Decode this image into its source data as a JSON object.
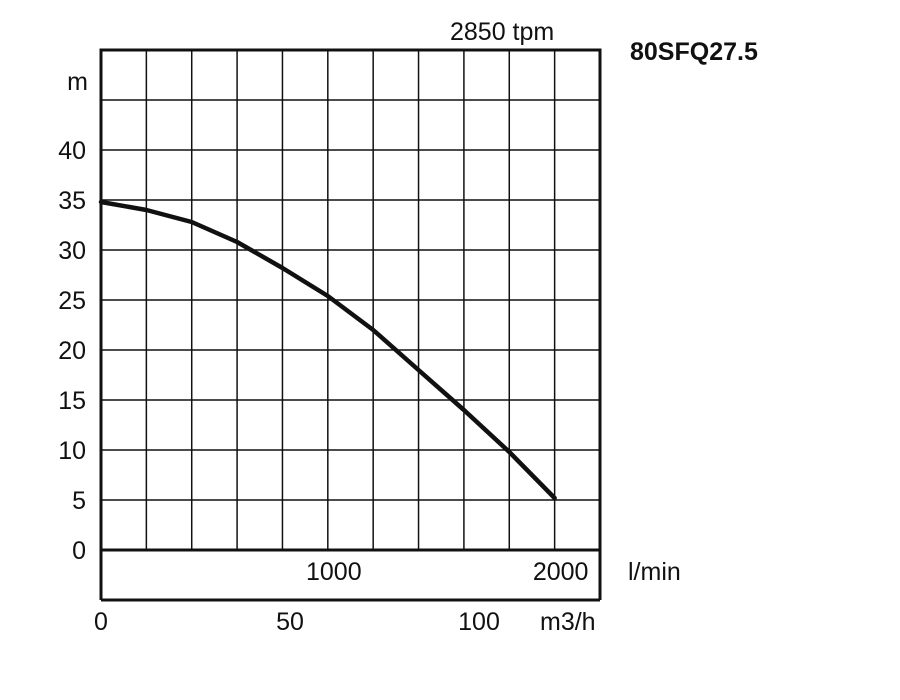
{
  "chart_data": {
    "type": "line",
    "title": "80SFQ27.5",
    "subtitle": "2850 tpm",
    "ylabel": "m",
    "xlabel": "l/min",
    "x2label": "m3/h",
    "ylim": [
      0,
      50
    ],
    "xlim": [
      0,
      2200
    ],
    "y_ticks": [
      "0",
      "5",
      "10",
      "15",
      "20",
      "25",
      "30",
      "35",
      "40"
    ],
    "x_ticks": [
      {
        "value": 1000,
        "label": "1000"
      },
      {
        "value": 2000,
        "label": "2000"
      }
    ],
    "x2_ticks": [
      {
        "value": 0,
        "label": "0"
      },
      {
        "value": 50,
        "label": "50"
      },
      {
        "value": 100,
        "label": "100"
      }
    ],
    "grid": true,
    "series": [
      {
        "x": [
          0,
          200,
          400,
          600,
          800,
          1000,
          1200,
          1400,
          1600,
          1800,
          2000
        ],
        "y": [
          34.8,
          34,
          32.8,
          30.8,
          28.2,
          25.4,
          22,
          18,
          14,
          9.8,
          5.2
        ]
      }
    ]
  }
}
